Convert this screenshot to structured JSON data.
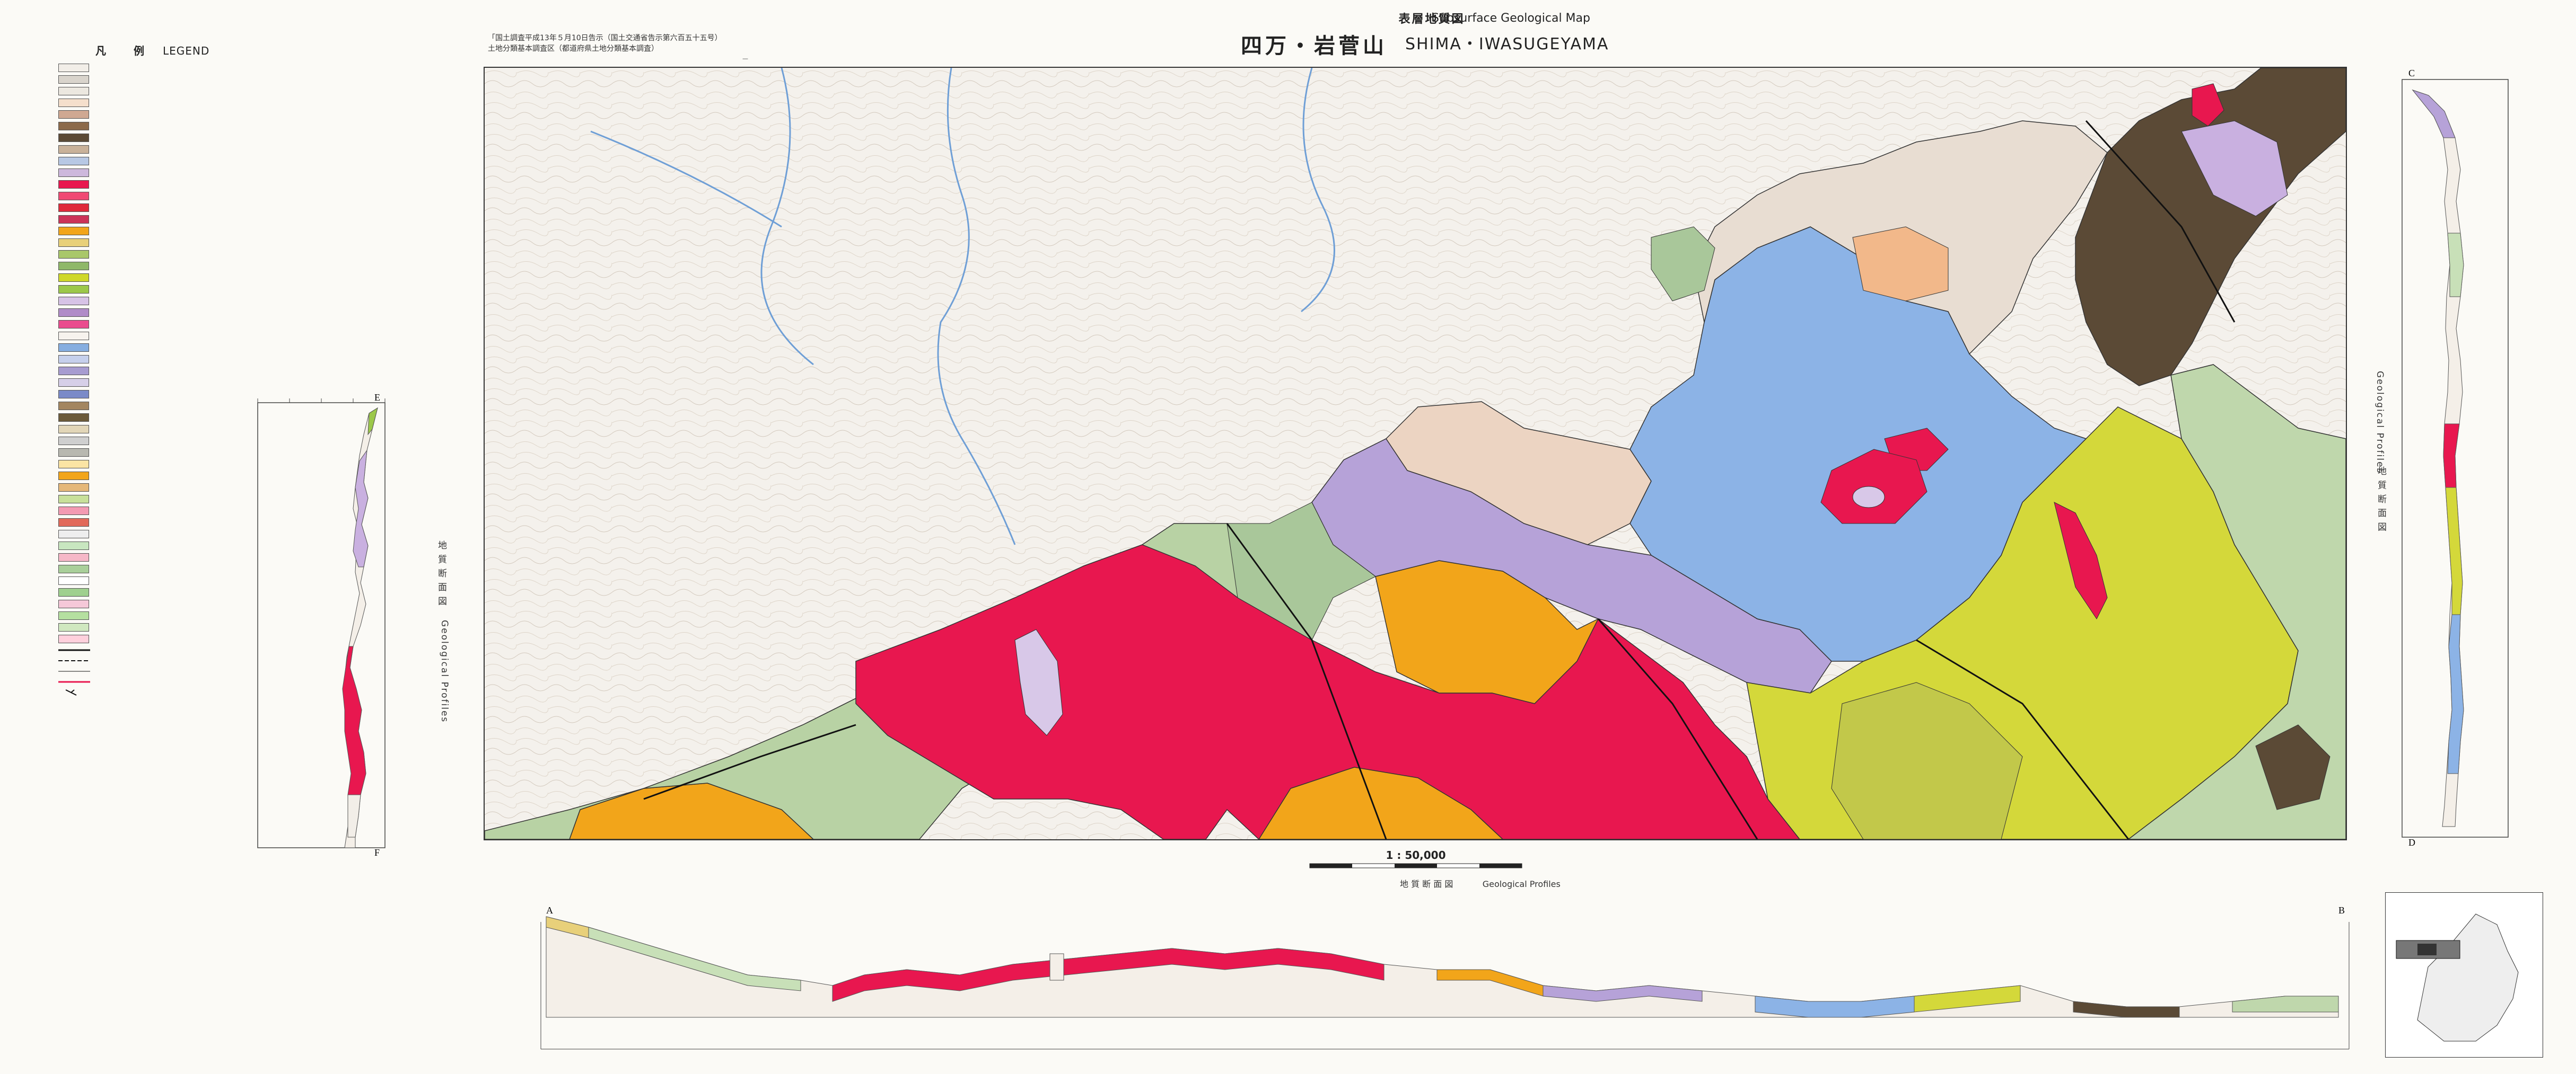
{
  "header": {
    "title_jp_small": "表層地質図",
    "title_jp": "四万・岩菅山",
    "title_en_small": "Subsurface Geological Map",
    "title_en": "SHIMA・IWASUGEYAMA",
    "notes_left": [
      "「国土調査平成13年５月10日告示（国土交通省告示第六百五十五号）",
      "土地分類基本調査区（都道府県土地分類基本調査）"
    ]
  },
  "legend": {
    "title_jp": "凡　　例",
    "title_en": "LEGEND",
    "entries": [
      {
        "color": "#f2eee8"
      },
      {
        "color": "#d9d4cc"
      },
      {
        "color": "#ece8e0"
      },
      {
        "color": "#f5dfcc"
      },
      {
        "color": "#cfa892"
      },
      {
        "color": "#8c6a4a"
      },
      {
        "color": "#5b4a36"
      },
      {
        "color": "#c9b29a"
      },
      {
        "color": "#b7c8e4"
      },
      {
        "color": "#cdb8dc"
      },
      {
        "color": "#e8174f"
      },
      {
        "color": "#f04a74"
      },
      {
        "color": "#e02a3a"
      },
      {
        "color": "#cc3358"
      },
      {
        "color": "#f2a51a"
      },
      {
        "color": "#e8d07a"
      },
      {
        "color": "#a9c76a"
      },
      {
        "color": "#8fb868"
      },
      {
        "color": "#cfd82a"
      },
      {
        "color": "#9cc84a"
      },
      {
        "color": "#d7c3e6"
      },
      {
        "color": "#b08cc8"
      },
      {
        "color": "#ea4c8e"
      },
      {
        "color": "#f7f3ee"
      },
      {
        "color": "#86aee0"
      },
      {
        "color": "#c6d0ec"
      },
      {
        "color": "#a79cd0"
      },
      {
        "color": "#d6cfe8"
      },
      {
        "color": "#7a8ac8"
      },
      {
        "color": "#a38660"
      },
      {
        "color": "#6b5a3a"
      },
      {
        "color": "#e2d6b8"
      },
      {
        "color": "#cfcfcf"
      },
      {
        "color": "#b8b8b0"
      },
      {
        "color": "#fbe4a4"
      },
      {
        "color": "#f2a51a"
      },
      {
        "color": "#e5b87a"
      },
      {
        "color": "#c8e09a"
      },
      {
        "color": "#f39ab2"
      },
      {
        "color": "#e26a5a"
      },
      {
        "color": "#eeeeee"
      },
      {
        "color": "#c8e6c0"
      },
      {
        "color": "#f6b8c8"
      },
      {
        "color": "#a9cf9a"
      },
      {
        "color": "#ffffff"
      },
      {
        "color": "#9fd08f"
      },
      {
        "color": "#f5c8d8"
      },
      {
        "color": "#b5e0a0"
      },
      {
        "color": "#d0e8c0"
      },
      {
        "color": "#ffd0dc"
      }
    ]
  },
  "map": {
    "colors": {
      "topo": "#f4f1ec",
      "magenta": "#e8174f",
      "orange": "#f2a51a",
      "blue": "#8cb3e6",
      "lavender": "#b6a2d8",
      "green": "#a9c79a",
      "olive": "#cfd82a",
      "brown": "#5b4a36",
      "peach": "#f1c8a8",
      "pale": "#e8ddd2"
    }
  },
  "scale": {
    "ratio": "1 : 50,000"
  },
  "profiles": {
    "caption_jp": "地 質 断 面 図",
    "caption_en": "Geological Profiles",
    "side_label_en": "Geological Profiles",
    "side_label_jp": "地 質 断 面 図",
    "letters": {
      "a": "A",
      "b": "B",
      "c": "C",
      "d": "D",
      "e": "E",
      "f": "F"
    }
  }
}
